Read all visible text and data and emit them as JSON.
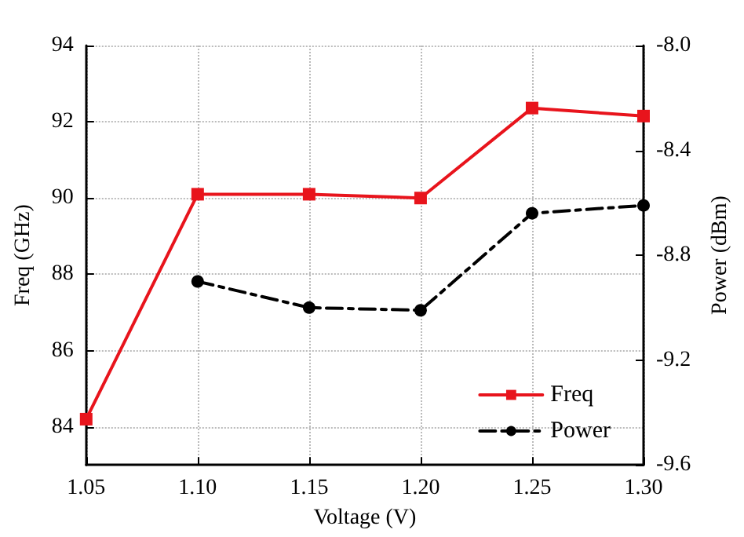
{
  "chart_data": {
    "type": "line",
    "xlabel": "Voltage (V)",
    "ylabel": "Freq (GHz)",
    "y2label": "Power (dBm)",
    "x": [
      1.05,
      1.1,
      1.15,
      1.2,
      1.25,
      1.3
    ],
    "xlim": [
      1.05,
      1.3
    ],
    "xticks": [
      1.05,
      {
        "value": 1.1,
        "label": "1.10"
      },
      1.15,
      {
        "value": 1.2,
        "label": "1.20"
      },
      1.25,
      {
        "value": 1.3,
        "label": "1.30"
      }
    ],
    "ylim": [
      83,
      94
    ],
    "yticks": [
      84,
      86,
      88,
      90,
      92,
      94
    ],
    "y2lim": [
      -9.6,
      -8.0
    ],
    "y2ticks": [
      -9.6,
      -9.2,
      -8.8,
      -8.4,
      {
        "value": -8,
        "label": "-8.0"
      }
    ],
    "grid": true,
    "legend": "bottom right",
    "series": [
      {
        "name": "Freq",
        "color": "#e8141c",
        "marker": "square",
        "line_style": "solid",
        "values": [
          84.2,
          90.1,
          90.1,
          90.0,
          92.36,
          92.15
        ]
      },
      {
        "name": "Power",
        "color": "#000000",
        "marker": "circle",
        "line_style": "dashed",
        "axis": "y2",
        "values": [
          null,
          -8.9,
          -9.0,
          -9.01,
          -8.64,
          -8.61
        ]
      }
    ]
  }
}
